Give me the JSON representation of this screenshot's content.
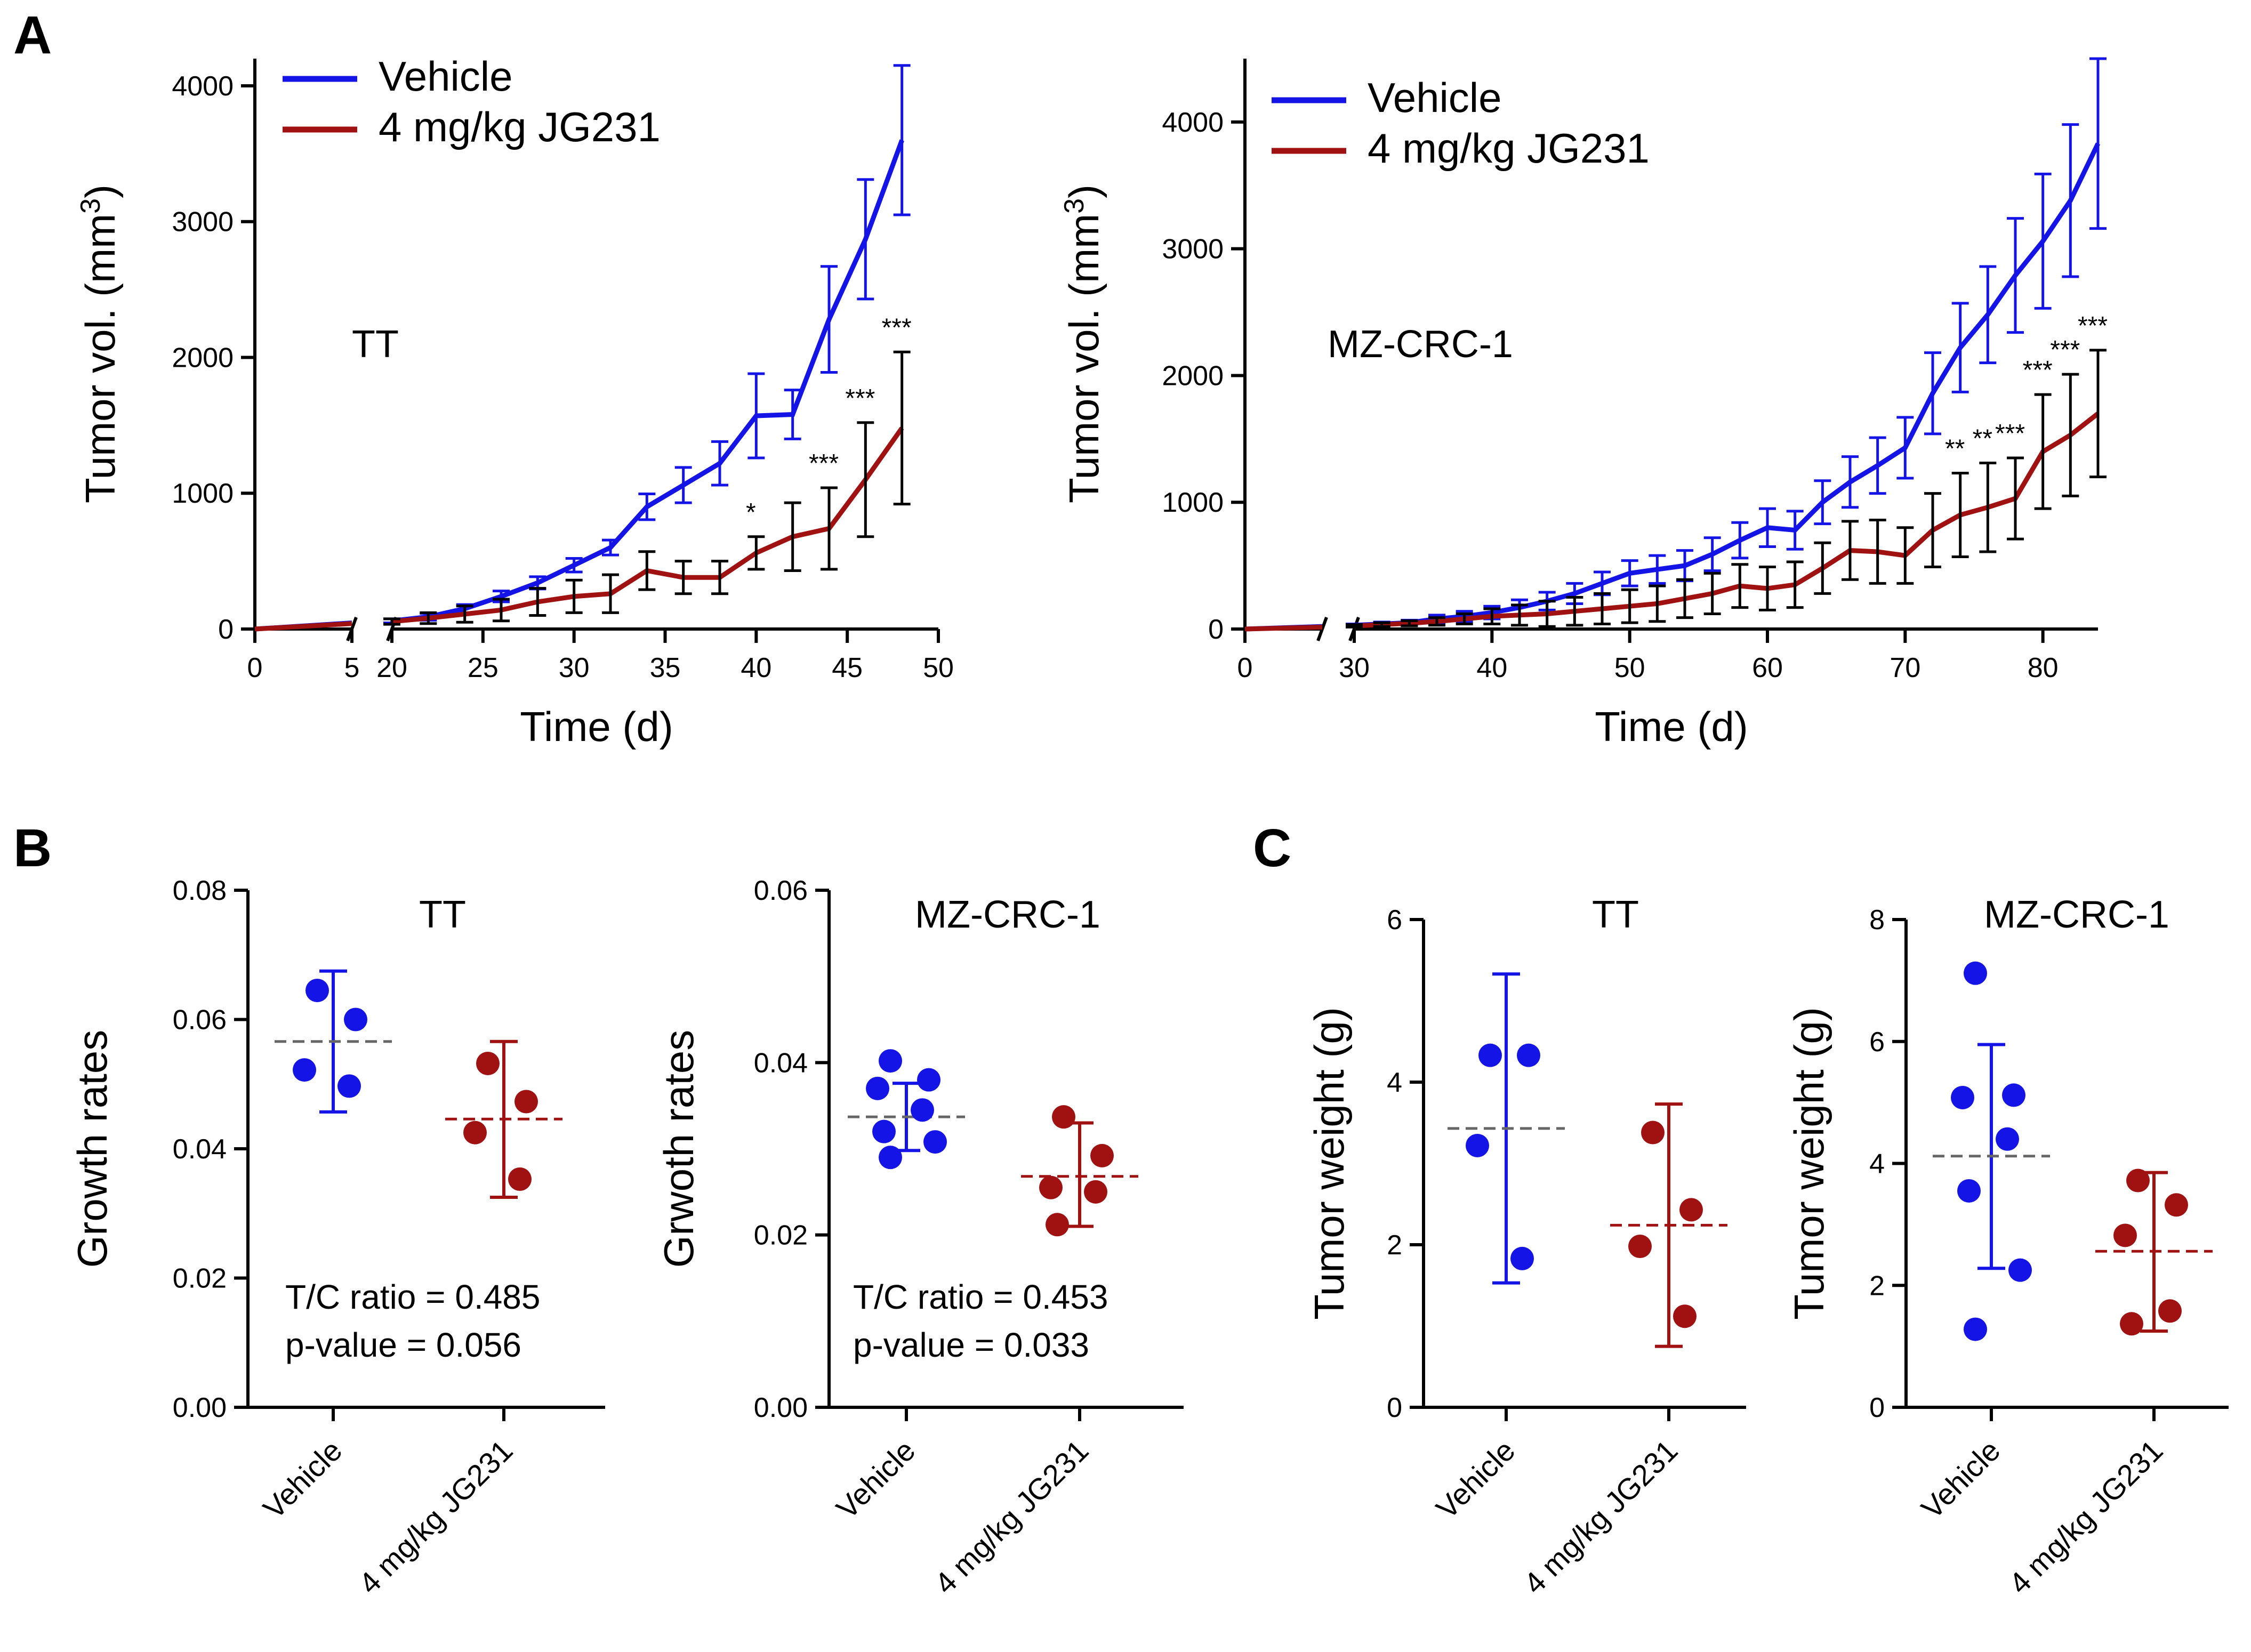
{
  "panels": [
    "A",
    "B",
    "C"
  ],
  "colors": {
    "vehicle": "#1414e6",
    "jg231": "#a01212",
    "mean": "#666666",
    "axis": "#000000"
  },
  "chart_data": [
    {
      "id": "A_TT",
      "type": "line",
      "title": "TT",
      "xlabel": "Time (d)",
      "ylabel": "Tumor vol. (mm",
      "ylabel_sup": "3",
      "ylabel_end": ")",
      "xlim": [
        0,
        50
      ],
      "ylim": [
        0,
        4200
      ],
      "x_break": [
        5,
        20
      ],
      "xticks": [
        0,
        5,
        20,
        25,
        30,
        35,
        40,
        45,
        50
      ],
      "yticks": [
        0,
        1000,
        2000,
        3000,
        4000
      ],
      "legend": [
        "Vehicle",
        "4 mg/kg JG231"
      ],
      "series": [
        {
          "name": "Vehicle",
          "x": [
            0,
            5,
            20,
            22,
            24,
            26,
            28,
            30,
            32,
            34,
            36,
            38,
            40,
            42,
            44,
            46,
            48
          ],
          "y": [
            0,
            45,
            60,
            90,
            150,
            240,
            340,
            470,
            600,
            900,
            1060,
            1220,
            1570,
            1580,
            2280,
            2870,
            3600
          ],
          "err": [
            0,
            5,
            15,
            25,
            30,
            40,
            45,
            50,
            55,
            95,
            130,
            160,
            310,
            180,
            390,
            440,
            550
          ]
        },
        {
          "name": "4 mg/kg JG231",
          "x": [
            0,
            5,
            20,
            22,
            24,
            26,
            28,
            30,
            32,
            34,
            36,
            38,
            40,
            42,
            44,
            46,
            48
          ],
          "y": [
            0,
            40,
            55,
            80,
            110,
            140,
            200,
            240,
            260,
            430,
            380,
            380,
            560,
            680,
            740,
            1100,
            1480
          ],
          "err": [
            0,
            5,
            20,
            40,
            60,
            80,
            100,
            120,
            140,
            140,
            120,
            120,
            120,
            250,
            300,
            420,
            560
          ]
        }
      ],
      "significance": [
        {
          "x": 40,
          "label": "*"
        },
        {
          "x": 44,
          "label": "***"
        },
        {
          "x": 46,
          "label": "***"
        },
        {
          "x": 48,
          "label": "***"
        }
      ]
    },
    {
      "id": "A_MZ",
      "type": "line",
      "title": "MZ-CRC-1",
      "xlabel": "Time (d)",
      "ylabel": "Tumor vol. (mm",
      "ylabel_sup": "3",
      "ylabel_end": ")",
      "xlim": [
        0,
        84
      ],
      "ylim": [
        0,
        4500
      ],
      "x_break": [
        7,
        30
      ],
      "xticks": [
        0,
        30,
        40,
        50,
        60,
        70,
        80
      ],
      "yticks": [
        0,
        1000,
        2000,
        3000,
        4000
      ],
      "legend": [
        "Vehicle",
        "4 mg/kg JG231"
      ],
      "series": [
        {
          "name": "Vehicle",
          "x": [
            0,
            7,
            30,
            32,
            34,
            36,
            38,
            40,
            42,
            44,
            46,
            48,
            50,
            52,
            54,
            56,
            58,
            60,
            62,
            64,
            66,
            68,
            70,
            72,
            74,
            76,
            78,
            80,
            82,
            84
          ],
          "y": [
            0,
            20,
            30,
            40,
            50,
            80,
            100,
            130,
            170,
            220,
            280,
            360,
            440,
            470,
            500,
            590,
            700,
            800,
            780,
            1000,
            1160,
            1290,
            1430,
            1860,
            2220,
            2480,
            2790,
            3060,
            3380,
            3830
          ],
          "err": [
            0,
            5,
            10,
            15,
            20,
            30,
            40,
            50,
            60,
            70,
            80,
            90,
            100,
            110,
            120,
            130,
            140,
            150,
            150,
            170,
            200,
            220,
            240,
            320,
            350,
            380,
            450,
            530,
            600,
            670
          ]
        },
        {
          "name": "4 mg/kg JG231",
          "x": [
            0,
            7,
            30,
            32,
            34,
            36,
            38,
            40,
            42,
            44,
            46,
            48,
            50,
            52,
            54,
            56,
            58,
            60,
            62,
            64,
            66,
            68,
            70,
            72,
            74,
            76,
            78,
            80,
            82,
            84
          ],
          "y": [
            0,
            15,
            25,
            35,
            45,
            60,
            80,
            100,
            110,
            120,
            140,
            160,
            180,
            200,
            240,
            280,
            340,
            320,
            350,
            480,
            620,
            610,
            580,
            780,
            900,
            960,
            1030,
            1400,
            1530,
            1700
          ],
          "err": [
            0,
            5,
            10,
            15,
            20,
            30,
            40,
            60,
            80,
            100,
            110,
            120,
            130,
            140,
            150,
            160,
            170,
            170,
            180,
            200,
            230,
            250,
            220,
            290,
            330,
            350,
            320,
            450,
            480,
            500
          ]
        }
      ],
      "significance": [
        {
          "x": 74,
          "label": "**"
        },
        {
          "x": 76,
          "label": "**"
        },
        {
          "x": 78,
          "label": "***"
        },
        {
          "x": 80,
          "label": "***"
        },
        {
          "x": 82,
          "label": "***"
        },
        {
          "x": 84,
          "label": "***"
        }
      ]
    },
    {
      "id": "B_TT",
      "type": "scatter",
      "title": "TT",
      "ylabel": "Growth rates",
      "categories": [
        "Vehicle",
        "4 mg/kg JG231"
      ],
      "ylim": [
        0,
        0.08
      ],
      "yticks": [
        0.0,
        0.02,
        0.04,
        0.06,
        0.08
      ],
      "ytick_labels": [
        "0.00",
        "0.02",
        "0.04",
        "0.06",
        "0.08"
      ],
      "annotation": [
        "T/C ratio = 0.485",
        "p-value = 0.056"
      ],
      "groups": [
        {
          "name": "Vehicle",
          "points": [
            0.0645,
            0.06,
            0.0522,
            0.0497
          ],
          "mean": 0.0566,
          "err_low": 0.0457,
          "err_high": 0.0675
        },
        {
          "name": "4 mg/kg JG231",
          "points": [
            0.0532,
            0.0473,
            0.0425,
            0.0353
          ],
          "mean": 0.0446,
          "err_low": 0.0325,
          "err_high": 0.0566
        }
      ]
    },
    {
      "id": "B_MZ",
      "type": "scatter",
      "title": "MZ-CRC-1",
      "ylabel": "Grwoth rates",
      "categories": [
        "Vehicle",
        "4 mg/kg JG231"
      ],
      "ylim": [
        0,
        0.06
      ],
      "yticks": [
        0.0,
        0.02,
        0.04,
        0.06
      ],
      "ytick_labels": [
        "0.00",
        "0.02",
        "0.04",
        "0.06"
      ],
      "annotation": [
        "T/C ratio = 0.453",
        "p-value = 0.033"
      ],
      "groups": [
        {
          "name": "Vehicle",
          "points": [
            0.0402,
            0.038,
            0.037,
            0.0345,
            0.032,
            0.0308,
            0.029
          ],
          "mean": 0.0337,
          "err_low": 0.0298,
          "err_high": 0.0376
        },
        {
          "name": "4 mg/kg JG231",
          "points": [
            0.0337,
            0.0292,
            0.0255,
            0.025,
            0.0212
          ],
          "mean": 0.0268,
          "err_low": 0.021,
          "err_high": 0.033
        }
      ]
    },
    {
      "id": "C_TT",
      "type": "scatter",
      "title": "TT",
      "ylabel": "Tumor weight (g)",
      "categories": [
        "Vehicle",
        "4 mg/kg JG231"
      ],
      "ylim": [
        0,
        6
      ],
      "yticks": [
        0,
        2,
        4,
        6
      ],
      "ytick_labels": [
        "0",
        "2",
        "4",
        "6"
      ],
      "groups": [
        {
          "name": "Vehicle",
          "points": [
            4.33,
            4.33,
            3.22,
            1.83
          ],
          "mean": 3.43,
          "err_low": 1.53,
          "err_high": 5.33
        },
        {
          "name": "4 mg/kg JG231",
          "points": [
            3.38,
            2.43,
            1.98,
            1.12
          ],
          "mean": 2.24,
          "err_low": 0.75,
          "err_high": 3.73
        }
      ]
    },
    {
      "id": "C_MZ",
      "type": "scatter",
      "title": "MZ-CRC-1",
      "ylabel": "Tumor weight (g)",
      "categories": [
        "Vehicle",
        "4 mg/kg JG231"
      ],
      "ylim": [
        0,
        8
      ],
      "yticks": [
        0,
        2,
        4,
        6,
        8
      ],
      "ytick_labels": [
        "0",
        "2",
        "4",
        "6",
        "8"
      ],
      "groups": [
        {
          "name": "Vehicle",
          "points": [
            7.12,
            5.12,
            5.08,
            4.4,
            3.55,
            2.25,
            1.28
          ],
          "mean": 4.12,
          "err_low": 2.28,
          "err_high": 5.95
        },
        {
          "name": "4 mg/kg JG231",
          "points": [
            3.72,
            3.32,
            2.82,
            1.58,
            1.37
          ],
          "mean": 2.56,
          "err_low": 1.25,
          "err_high": 3.85
        }
      ]
    }
  ]
}
